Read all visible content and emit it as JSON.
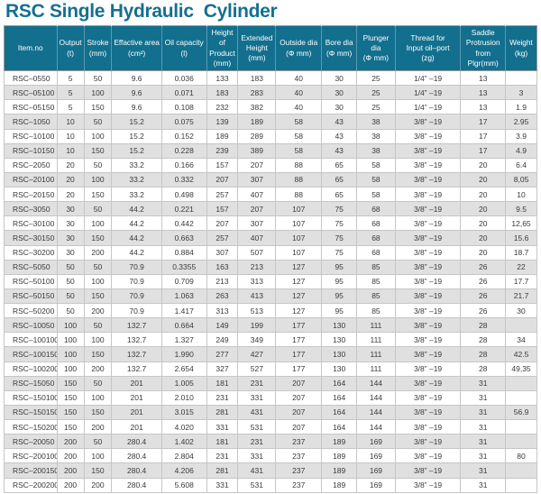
{
  "page": {
    "title": "RSC Single Hydraulic  Cylinder"
  },
  "colors": {
    "header_bg": "#136f8e",
    "title_text": "#15708f",
    "row_alt_bg": "#e0e0e0",
    "body_text": "#3a3a3a",
    "grid_border": "#c6c6c6"
  },
  "table": {
    "columns": [
      "Item.no",
      "Output\n(t)",
      "Stroke\n(mm)",
      "Effactive area\n(cm²)",
      "Oil capacity\n(l)",
      "Height of\nProduct\n(mm)",
      "Extended\nHeight\n(mm)",
      "Outside dia\n(Φ mm)",
      "Bore dia\n(Φ mm)",
      "Plunger dia\n(Φ mm)",
      "Thread for\nInput oil–port\n(zg)",
      "Saddle\nProtrusion from\nPlgr(mm)",
      "Weight\n(kg)"
    ],
    "rows": [
      [
        "RSC–0550",
        "5",
        "50",
        "9.6",
        "0.036",
        "133",
        "183",
        "40",
        "30",
        "25",
        "1/4” –19",
        "13",
        ""
      ],
      [
        "RSC–05100",
        "5",
        "100",
        "9.6",
        "0.071",
        "183",
        "283",
        "40",
        "30",
        "25",
        "1/4” –19",
        "13",
        "3"
      ],
      [
        "RSC–05150",
        "5",
        "150",
        "9.6",
        "0.108",
        "232",
        "382",
        "40",
        "30",
        "25",
        "1/4” –19",
        "13",
        "1.9"
      ],
      [
        "RSC–1050",
        "10",
        "50",
        "15.2",
        "0.075",
        "139",
        "189",
        "58",
        "43",
        "38",
        "3/8” –19",
        "17",
        "2.95"
      ],
      [
        "RSC–10100",
        "10",
        "100",
        "15.2",
        "0.152",
        "189",
        "289",
        "58",
        "43",
        "38",
        "3/8” –19",
        "17",
        "3.9"
      ],
      [
        "RSC–10150",
        "10",
        "150",
        "15.2",
        "0.228",
        "239",
        "389",
        "58",
        "43",
        "38",
        "3/8” –19",
        "17",
        "4.9"
      ],
      [
        "RSC–2050",
        "20",
        "50",
        "33.2",
        "0.166",
        "157",
        "207",
        "88",
        "65",
        "58",
        "3/8” –19",
        "20",
        "6.4"
      ],
      [
        "RSC–20100",
        "20",
        "100",
        "33.2",
        "0.332",
        "207",
        "307",
        "88",
        "65",
        "58",
        "3/8” –19",
        "20",
        "8,05"
      ],
      [
        "RSC–20150",
        "20",
        "150",
        "33.2",
        "0.498",
        "257",
        "407",
        "88",
        "65",
        "58",
        "3/8” –19",
        "20",
        "10"
      ],
      [
        "RSC–3050",
        "30",
        "50",
        "44.2",
        "0.221",
        "157",
        "207",
        "107",
        "75",
        "68",
        "3/8” –19",
        "20",
        "9.5"
      ],
      [
        "RSC–30100",
        "30",
        "100",
        "44.2",
        "0.442",
        "207",
        "307",
        "107",
        "75",
        "68",
        "3/8” –19",
        "20",
        "12,65"
      ],
      [
        "RSC–30150",
        "30",
        "150",
        "44.2",
        "0.663",
        "257",
        "407",
        "107",
        "75",
        "68",
        "3/8” –19",
        "20",
        "15.6"
      ],
      [
        "RSC–30200",
        "30",
        "200",
        "44.2",
        "0.884",
        "307",
        "507",
        "107",
        "75",
        "68",
        "3/8” –19",
        "20",
        "18.7"
      ],
      [
        "RSC–5050",
        "50",
        "50",
        "70.9",
        "0.3355",
        "163",
        "213",
        "127",
        "95",
        "85",
        "3/8” –19",
        "26",
        "22"
      ],
      [
        "RSC–50100",
        "50",
        "100",
        "70.9",
        "0.709",
        "213",
        "313",
        "127",
        "95",
        "85",
        "3/8” –19",
        "26",
        "17.7"
      ],
      [
        "RSC–50150",
        "50",
        "150",
        "70.9",
        "1.063",
        "263",
        "413",
        "127",
        "95",
        "85",
        "3/8” –19",
        "26",
        "21.7"
      ],
      [
        "RSC–50200",
        "50",
        "200",
        "70.9",
        "1.417",
        "313",
        "513",
        "127",
        "95",
        "85",
        "3/8” –19",
        "26",
        "30"
      ],
      [
        "RSC–10050",
        "100",
        "50",
        "132.7",
        "0.664",
        "149",
        "199",
        "177",
        "130",
        "111",
        "3/8” –19",
        "28",
        ""
      ],
      [
        "RSC–100100",
        "100",
        "100",
        "132.7",
        "1.327",
        "249",
        "349",
        "177",
        "130",
        "111",
        "3/8” –19",
        "28",
        "34"
      ],
      [
        "RSC–100150",
        "100",
        "150",
        "132.7",
        "1.990",
        "277",
        "427",
        "177",
        "130",
        "111",
        "3/8” –19",
        "28",
        "42.5"
      ],
      [
        "RSC–100200",
        "100",
        "200",
        "132.7",
        "2.654",
        "327",
        "527",
        "177",
        "130",
        "111",
        "3/8” –19",
        "28",
        "49,35"
      ],
      [
        "RSC–15050",
        "150",
        "50",
        "201",
        "1.005",
        "181",
        "231",
        "207",
        "164",
        "144",
        "3/8” –19",
        "31",
        ""
      ],
      [
        "RSC–150100",
        "150",
        "100",
        "201",
        "2.010",
        "231",
        "331",
        "207",
        "164",
        "144",
        "3/8” –19",
        "31",
        ""
      ],
      [
        "RSC–150150",
        "150",
        "150",
        "201",
        "3.015",
        "281",
        "431",
        "207",
        "164",
        "144",
        "3/8” –19",
        "31",
        "56.9"
      ],
      [
        "RSC–150200",
        "150",
        "200",
        "201",
        "4.020",
        "331",
        "531",
        "207",
        "164",
        "144",
        "3/8” –19",
        "31",
        ""
      ],
      [
        "RSC–20050",
        "200",
        "50",
        "280.4",
        "1.402",
        "181",
        "231",
        "237",
        "189",
        "169",
        "3/8” –19",
        "31",
        ""
      ],
      [
        "RSC–200100",
        "200",
        "100",
        "280.4",
        "2.804",
        "231",
        "331",
        "237",
        "189",
        "169",
        "3/8” –19",
        "31",
        "80"
      ],
      [
        "RSC–200150",
        "200",
        "150",
        "280.4",
        "4.206",
        "281",
        "431",
        "237",
        "189",
        "169",
        "3/8” –19",
        "31",
        ""
      ],
      [
        "RSC–200200",
        "200",
        "200",
        "280.4",
        "5.608",
        "331",
        "531",
        "237",
        "189",
        "169",
        "3/8” –19",
        "31",
        ""
      ]
    ]
  }
}
